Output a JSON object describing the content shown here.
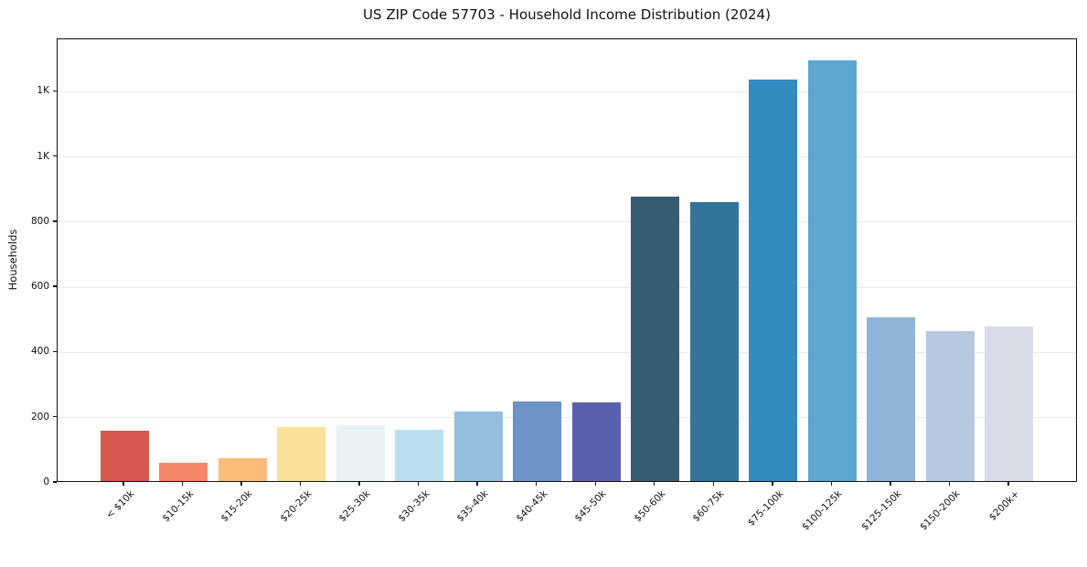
{
  "chart_data": {
    "type": "bar",
    "title": "US ZIP Code 57703 - Household Income Distribution (2024)",
    "xlabel": "",
    "ylabel": "Households",
    "categories": [
      "< $10k",
      "$10-15k",
      "$15-20k",
      "$20-25k",
      "$25-30k",
      "$30-35k",
      "$35-40k",
      "$40-45k",
      "$45-50k",
      "$50-60k",
      "$60-75k",
      "$75-100k",
      "$100-125k",
      "$125-150k",
      "$150-200k",
      "$200k+"
    ],
    "values": [
      155,
      57,
      69,
      167,
      172,
      158,
      212,
      243,
      241,
      872,
      856,
      1231,
      1291,
      503,
      461,
      473
    ],
    "bar_colors": [
      "#d6574e",
      "#f48768",
      "#f9bd79",
      "#fbe098",
      "#e8f2f4",
      "#bbdfee",
      "#93bfdd",
      "#6b93c5",
      "#5a5fae",
      "#365c71",
      "#337598",
      "#338cc0",
      "#5ba7cf",
      "#8fb6d9",
      "#b6c9e0",
      "#d8dae8"
    ],
    "ylim": [
      0,
      1361
    ],
    "yticks": {
      "values": [
        0,
        200,
        400,
        600,
        800,
        1000,
        1200
      ],
      "labels": [
        "0",
        "200",
        "400",
        "600",
        "800",
        "1K",
        "1K"
      ]
    },
    "grid": "horizontal",
    "legend": "none",
    "grid_color": "#e9e9e9",
    "spine_color": "#151515",
    "background_color": "#ffffff"
  }
}
